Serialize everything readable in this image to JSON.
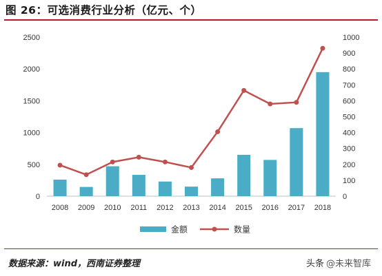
{
  "title": "图 26：可选消费行业分析（亿元、个）",
  "source": "数据来源：wind，西南证券整理",
  "watermark": {
    "brand": "头条",
    "handle": "@未来智库"
  },
  "colors": {
    "bar": "#4BACC6",
    "line": "#C0504D",
    "accent": "#C8102E"
  },
  "chart_data": {
    "type": "bar",
    "categories": [
      "2008",
      "2009",
      "2010",
      "2011",
      "2012",
      "2013",
      "2014",
      "2015",
      "2016",
      "2017",
      "2018"
    ],
    "series": [
      {
        "name": "金额",
        "type": "bar",
        "axis": "left",
        "values": [
          260,
          145,
          470,
          335,
          230,
          150,
          280,
          650,
          570,
          1070,
          1950
        ]
      },
      {
        "name": "数量",
        "type": "line",
        "axis": "right",
        "values": [
          195,
          135,
          215,
          245,
          215,
          180,
          405,
          665,
          580,
          590,
          930
        ]
      }
    ],
    "left_axis": {
      "min": 0,
      "max": 2500,
      "ticks": [
        0,
        500,
        1000,
        1500,
        2000,
        2500
      ]
    },
    "right_axis": {
      "min": 0,
      "max": 1000,
      "ticks": [
        0,
        100,
        200,
        300,
        400,
        500,
        600,
        700,
        800,
        900,
        1000
      ]
    },
    "grid": false,
    "legend_position": "bottom"
  }
}
